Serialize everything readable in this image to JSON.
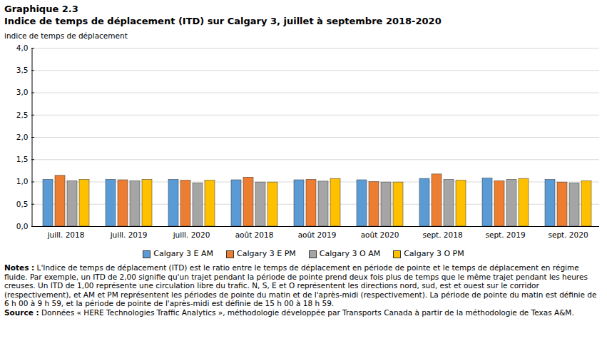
{
  "chart_data": {
    "type": "bar",
    "title": "Graphique  2.3",
    "subtitle": "Indice de temps de déplacement (ITD) sur Calgary 3, juillet à septembre 2018-2020",
    "y_label": "indice de temps de déplacement",
    "categories": [
      "juill. 2018",
      "juill. 2019",
      "juill. 2020",
      "août 2018",
      "août 2019",
      "août 2020",
      "sept. 2018",
      "sept. 2019",
      "sept. 2020"
    ],
    "series": [
      {
        "name": "Calgary 3 E AM",
        "color": "#5b9bd5",
        "values": [
          1.05,
          1.05,
          1.05,
          1.04,
          1.04,
          1.04,
          1.07,
          1.08,
          1.05
        ]
      },
      {
        "name": "Calgary 3 E PM",
        "color": "#ed7d31",
        "values": [
          1.14,
          1.04,
          1.03,
          1.1,
          1.05,
          1.0,
          1.17,
          1.02,
          0.99
        ]
      },
      {
        "name": "Calgary 3 O AM",
        "color": "#a5a5a5",
        "values": [
          1.02,
          1.02,
          0.97,
          0.99,
          1.01,
          0.99,
          1.05,
          1.05,
          0.97
        ]
      },
      {
        "name": "Calgary 3 O PM",
        "color": "#ffc000",
        "values": [
          1.05,
          1.05,
          1.03,
          0.99,
          1.07,
          0.99,
          1.03,
          1.07,
          1.02
        ]
      }
    ],
    "ylim": [
      0,
      4
    ],
    "yticks": [
      {
        "value": 0,
        "label": "0,0"
      },
      {
        "value": 0.5,
        "label": "0,5"
      },
      {
        "value": 1,
        "label": "1,0"
      },
      {
        "value": 1.5,
        "label": "1,5"
      },
      {
        "value": 2,
        "label": "2,0"
      },
      {
        "value": 2.5,
        "label": "2,5"
      },
      {
        "value": 3,
        "label": "3,0"
      },
      {
        "value": 3.5,
        "label": "3,5"
      },
      {
        "value": 4,
        "label": "4,0"
      }
    ],
    "grid": true,
    "legend": "bottom",
    "notes_label": "Notes :",
    "notes": "L'Indice de temps de déplacement (ITD) est le ratio  entre le temps de déplacement en période de pointe et le temps de déplacement en régime fluide. Par exemple, un ITD de 2,00 signifie qu'un trajet pendant la période de pointe prend deux fois plus de temps que le même trajet pendant les heures creuses. Un ITD de 1,00 représente une circulation libre du trafic. N, S, E et O représentent les directions nord, sud, est et ouest sur le corridor (respectivement), et AM et PM représentent les périodes de pointe du matin et de l'après-midi (respectivement). La période de pointe du matin est définie de 6 h 00 à 9 h 59, et la période de pointe de l'après-midi est définie de 15 h 00 à 18 h 59.",
    "source_label": "Source :",
    "source": "Données « HERE Technologies Traffic Analytics », méthodologie développée par Transports Canada à partir de la méthodologie de Texas A&M."
  }
}
